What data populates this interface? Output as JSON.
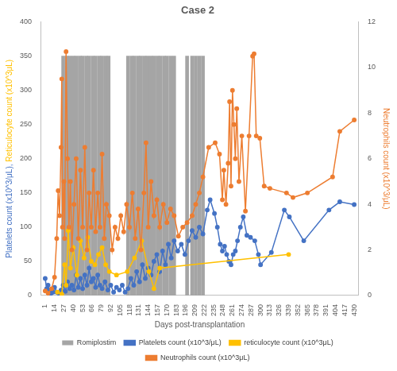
{
  "chart_data": {
    "type": "combo",
    "title": "Case 2",
    "xlabel": "Days post-transplantation",
    "ylabel": [
      "Platelets count (x10^3/μL), ",
      "Reticulocyte count (x10^3μL)"
    ],
    "y2label": "Neutrophils count (x10^3/μL)",
    "xlim": [
      1,
      430
    ],
    "xticks": [
      1,
      14,
      27,
      40,
      53,
      66,
      79,
      92,
      105,
      118,
      131,
      144,
      157,
      170,
      183,
      196,
      209,
      222,
      235,
      248,
      261,
      274,
      287,
      300,
      313,
      326,
      339,
      352,
      365,
      378,
      391,
      404,
      417,
      430
    ],
    "ylim": [
      0,
      400
    ],
    "yticks": [
      0,
      50,
      100,
      150,
      200,
      250,
      300,
      350,
      400
    ],
    "y2lim": [
      0,
      12
    ],
    "y2ticks": [
      0,
      2,
      4,
      6,
      8,
      10,
      12
    ],
    "grid": false,
    "legend": "bottom",
    "series": [
      {
        "name": "Romiplostim",
        "type": "bar",
        "color": "#a5a5a5",
        "axis": "y",
        "x": [
          26,
          31,
          35,
          40,
          44,
          49,
          53,
          58,
          62,
          67,
          71,
          76,
          80,
          85,
          89,
          116,
          121,
          125,
          130,
          134,
          139,
          143,
          148,
          152,
          157,
          161,
          166,
          170,
          175,
          180,
          198,
          205,
          210,
          215,
          220
        ],
        "values": [
          350,
          350,
          350,
          350,
          350,
          350,
          350,
          350,
          350,
          350,
          350,
          350,
          350,
          350,
          350,
          350,
          350,
          350,
          350,
          350,
          350,
          350,
          350,
          350,
          350,
          350,
          350,
          350,
          350,
          350,
          350,
          350,
          350,
          350,
          350
        ]
      },
      {
        "name": "Platelets count (x10^3/μL)",
        "type": "line",
        "marker": "circle",
        "color": "#4472c4",
        "axis": "y",
        "x": [
          1,
          3,
          5,
          7,
          9,
          12,
          14,
          17,
          20,
          23,
          26,
          29,
          32,
          35,
          38,
          41,
          44,
          47,
          50,
          53,
          56,
          59,
          62,
          65,
          68,
          71,
          74,
          77,
          80,
          84,
          88,
          92,
          96,
          100,
          104,
          108,
          112,
          116,
          120,
          124,
          128,
          132,
          136,
          140,
          144,
          148,
          152,
          156,
          160,
          164,
          168,
          172,
          176,
          180,
          185,
          190,
          195,
          200,
          205,
          210,
          215,
          220,
          226,
          230,
          236,
          240,
          244,
          247,
          250,
          253,
          256,
          259,
          262,
          265,
          268,
          272,
          276,
          281,
          286,
          292,
          297,
          300,
          315,
          333,
          340,
          360,
          395,
          410,
          430
        ],
        "values": [
          25,
          10,
          15,
          8,
          3,
          5,
          12,
          5,
          3,
          8,
          15,
          6,
          20,
          10,
          15,
          8,
          30,
          12,
          25,
          10,
          30,
          15,
          40,
          20,
          25,
          12,
          30,
          15,
          10,
          20,
          8,
          15,
          5,
          12,
          8,
          15,
          5,
          10,
          25,
          15,
          35,
          20,
          45,
          25,
          40,
          30,
          50,
          60,
          35,
          65,
          45,
          75,
          55,
          80,
          65,
          75,
          60,
          80,
          95,
          85,
          100,
          90,
          125,
          140,
          120,
          100,
          75,
          65,
          72,
          60,
          50,
          45,
          60,
          65,
          80,
          100,
          115,
          88,
          85,
          80,
          60,
          45,
          63,
          125,
          115,
          80,
          125,
          137,
          133
        ]
      },
      {
        "name": "reticulocyte count (x10^3μL)",
        "type": "line",
        "marker": "circle",
        "color": "#ffc000",
        "axis": "y",
        "x": [
          18,
          24,
          28,
          30,
          33,
          36,
          40,
          45,
          50,
          55,
          60,
          65,
          70,
          75,
          80,
          85,
          90,
          100,
          115,
          125,
          135,
          145,
          152,
          160,
          339
        ],
        "values": [
          5,
          2,
          45,
          15,
          95,
          40,
          70,
          30,
          80,
          55,
          85,
          50,
          45,
          60,
          70,
          45,
          35,
          30,
          35,
          55,
          80,
          35,
          10,
          40,
          60
        ]
      },
      {
        "name": "Neutrophils count (x10^3μL)",
        "type": "line",
        "marker": "circle",
        "color": "#ed7d31",
        "axis": "y2",
        "x": [
          1,
          5,
          10,
          14,
          17,
          19,
          21,
          23,
          24,
          25,
          27,
          28,
          30,
          32,
          34,
          36,
          38,
          41,
          44,
          47,
          50,
          53,
          56,
          59,
          62,
          65,
          68,
          71,
          74,
          77,
          80,
          83,
          86,
          90,
          94,
          98,
          102,
          106,
          110,
          114,
          118,
          122,
          126,
          130,
          134,
          138,
          141,
          144,
          148,
          152,
          156,
          160,
          165,
          170,
          175,
          180,
          186,
          192,
          198,
          205,
          210,
          215,
          220,
          228,
          237,
          243,
          247,
          249,
          252,
          255,
          257,
          259,
          261,
          263,
          265,
          267,
          270,
          274,
          279,
          284,
          289,
          291,
          294,
          299,
          305,
          313,
          336,
          345,
          365,
          400,
          410,
          430
        ],
        "values": [
          0.2,
          0.1,
          0.3,
          0.8,
          2.5,
          4.6,
          3.5,
          6.5,
          9.5,
          3,
          5,
          2.5,
          10.7,
          6,
          3,
          5,
          2,
          4,
          6,
          2.5,
          5.5,
          3,
          6.5,
          2,
          4.5,
          3,
          5.5,
          2.8,
          4.5,
          3,
          6.2,
          2.5,
          4,
          3.5,
          2,
          3,
          2.5,
          3.5,
          2.8,
          4,
          3,
          4.5,
          2.5,
          3.8,
          2,
          4.5,
          6.7,
          3,
          5,
          3.5,
          4.2,
          3,
          4,
          3.2,
          3.8,
          3.5,
          2.6,
          3,
          3.2,
          3.5,
          4,
          4.5,
          5.2,
          6.5,
          6.7,
          6.2,
          4.2,
          5.5,
          4,
          5.8,
          8.5,
          4.8,
          9,
          7.5,
          6,
          8.2,
          5,
          7,
          3.7,
          7,
          10.5,
          10.6,
          7,
          6.9,
          4.8,
          4.7,
          4.5,
          4.3,
          4.5,
          5.2,
          7.2,
          7.7
        ]
      }
    ]
  }
}
